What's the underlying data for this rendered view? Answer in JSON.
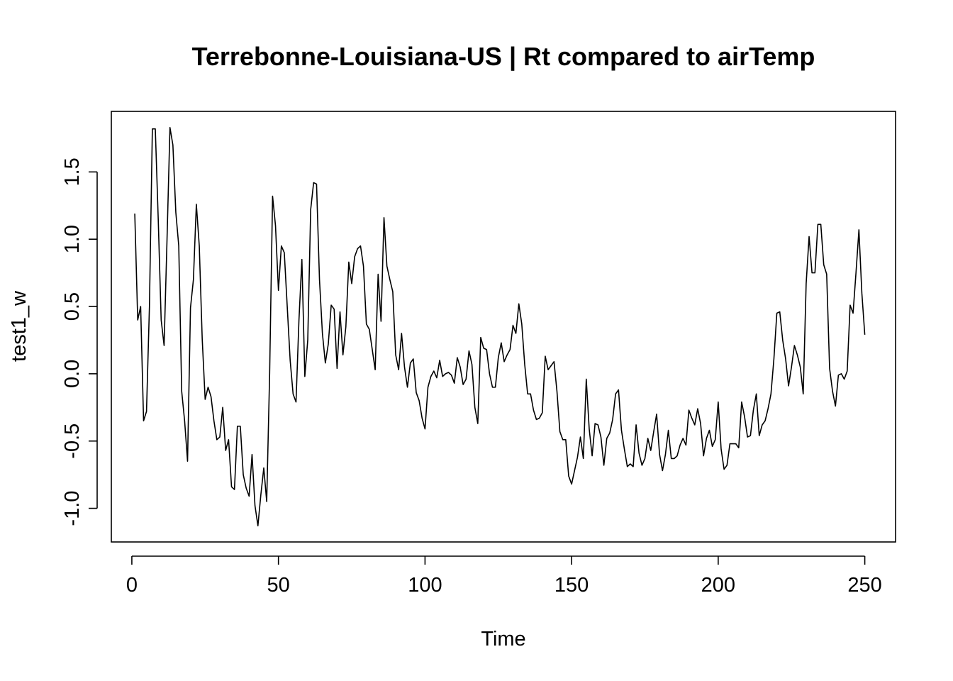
{
  "chart_data": {
    "type": "line",
    "title": "Terrebonne-Louisiana-US | Rt compared to airTemp",
    "xlabel": "Time",
    "ylabel": "test1_w",
    "xlim": [
      -7,
      260.5
    ],
    "ylim": [
      -1.25,
      1.95
    ],
    "x_ticks": [
      0,
      50,
      100,
      150,
      200,
      250
    ],
    "x_tick_labels": [
      "0",
      "50",
      "100",
      "150",
      "200",
      "250"
    ],
    "y_ticks": [
      -1.0,
      -0.5,
      0.0,
      0.5,
      1.0,
      1.5
    ],
    "y_tick_labels": [
      "-1.0",
      "-0.5",
      "0.0",
      "0.5",
      "1.0",
      "1.5"
    ],
    "grid": false,
    "series": [
      {
        "x_start": 1,
        "x_step": 1,
        "values": [
          1.19,
          0.4,
          0.5,
          -0.35,
          -0.28,
          0.5,
          1.82,
          1.82,
          1.15,
          0.4,
          0.21,
          1.0,
          1.83,
          1.7,
          1.2,
          0.95,
          -0.13,
          -0.35,
          -0.65,
          0.49,
          0.7,
          1.26,
          0.95,
          0.26,
          -0.19,
          -0.1,
          -0.17,
          -0.35,
          -0.49,
          -0.47,
          -0.25,
          -0.57,
          -0.49,
          -0.84,
          -0.86,
          -0.39,
          -0.39,
          -0.75,
          -0.85,
          -0.91,
          -0.6,
          -0.98,
          -1.13,
          -0.9,
          -0.7,
          -0.95,
          0.0,
          1.32,
          1.1,
          0.62,
          0.95,
          0.9,
          0.5,
          0.1,
          -0.15,
          -0.21,
          0.4,
          0.85,
          -0.02,
          0.25,
          1.22,
          1.42,
          1.41,
          0.7,
          0.3,
          0.08,
          0.22,
          0.51,
          0.48,
          0.04,
          0.46,
          0.14,
          0.35,
          0.83,
          0.67,
          0.87,
          0.93,
          0.95,
          0.8,
          0.37,
          0.33,
          0.18,
          0.03,
          0.74,
          0.39,
          1.16,
          0.8,
          0.7,
          0.61,
          0.14,
          0.03,
          0.3,
          0.05,
          -0.1,
          0.08,
          0.11,
          -0.14,
          -0.2,
          -0.33,
          -0.41,
          -0.1,
          -0.02,
          0.02,
          -0.03,
          0.1,
          -0.02,
          0.0,
          0.01,
          -0.01,
          -0.07,
          0.12,
          0.05,
          -0.08,
          -0.04,
          0.17,
          0.07,
          -0.25,
          -0.37,
          0.27,
          0.19,
          0.18,
          0.0,
          -0.1,
          -0.1,
          0.12,
          0.23,
          0.09,
          0.14,
          0.18,
          0.36,
          0.3,
          0.52,
          0.37,
          0.07,
          -0.15,
          -0.15,
          -0.27,
          -0.34,
          -0.33,
          -0.29,
          0.13,
          0.03,
          0.06,
          0.09,
          -0.13,
          -0.43,
          -0.49,
          -0.49,
          -0.76,
          -0.82,
          -0.72,
          -0.62,
          -0.47,
          -0.63,
          -0.04,
          -0.41,
          -0.61,
          -0.37,
          -0.38,
          -0.47,
          -0.68,
          -0.48,
          -0.44,
          -0.34,
          -0.15,
          -0.12,
          -0.42,
          -0.56,
          -0.69,
          -0.67,
          -0.69,
          -0.38,
          -0.59,
          -0.68,
          -0.63,
          -0.48,
          -0.57,
          -0.43,
          -0.3,
          -0.6,
          -0.72,
          -0.6,
          -0.42,
          -0.63,
          -0.63,
          -0.61,
          -0.53,
          -0.48,
          -0.53,
          -0.27,
          -0.33,
          -0.38,
          -0.26,
          -0.37,
          -0.61,
          -0.48,
          -0.42,
          -0.54,
          -0.49,
          -0.21,
          -0.56,
          -0.71,
          -0.68,
          -0.52,
          -0.52,
          -0.52,
          -0.55,
          -0.21,
          -0.32,
          -0.47,
          -0.46,
          -0.27,
          -0.15,
          -0.46,
          -0.38,
          -0.35,
          -0.26,
          -0.15,
          0.11,
          0.45,
          0.46,
          0.25,
          0.11,
          -0.09,
          0.05,
          0.21,
          0.14,
          0.05,
          -0.15,
          0.67,
          1.02,
          0.75,
          0.75,
          1.11,
          1.11,
          0.81,
          0.74,
          0.04,
          -0.13,
          -0.24,
          -0.01,
          0.0,
          -0.04,
          0.02,
          0.51,
          0.45,
          0.75,
          1.07,
          0.6,
          0.29
        ]
      }
    ]
  }
}
